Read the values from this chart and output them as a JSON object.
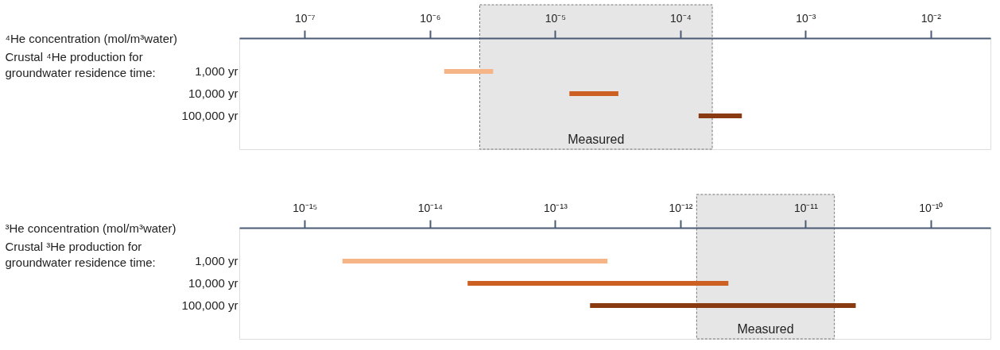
{
  "chart_data": [
    {
      "type": "bar",
      "orientation": "horizontal",
      "log": "x",
      "grid": false,
      "xlabel": "⁴He concentration (mol/m³water)",
      "ylabel": "Crustal ⁴He production for groundwater residence time:",
      "categories": [
        "1,000 yr",
        "10,000 yr",
        "100,000 yr"
      ],
      "base": [
        1.3e-06,
        1.3e-05,
        0.00014
      ],
      "values": [
        1.9e-06,
        1.9e-05,
        0.00017
      ],
      "colors": [
        "#f5b587",
        "#cc5f22",
        "#8a3a10"
      ],
      "xlim": [
        3e-08,
        0.03
      ],
      "xticks": [
        {
          "value": 1e-07,
          "label": "10⁻⁷"
        },
        {
          "value": 1e-06,
          "label": "10⁻⁶"
        },
        {
          "value": 1e-05,
          "label": "10⁻⁵"
        },
        {
          "value": 0.0001,
          "label": "10⁻⁴"
        },
        {
          "value": 0.001,
          "label": "10⁻³"
        },
        {
          "value": 0.01,
          "label": "10⁻²"
        }
      ],
      "bands": [
        {
          "axis": "x",
          "from": 2.5e-06,
          "to": 0.00018,
          "label": "Measured",
          "color": "#e6e6e6"
        }
      ]
    },
    {
      "type": "bar",
      "orientation": "horizontal",
      "log": "x",
      "grid": false,
      "xlabel": "³He concentration (mol/m³water)",
      "ylabel": "Crustal ³He production for groundwater residence time:",
      "categories": [
        "1,000 yr",
        "10,000 yr",
        "100,000 yr"
      ],
      "base": [
        2e-15,
        2e-14,
        1.9e-13
      ],
      "values": [
        2.6e-13,
        2.4e-12,
        2.5e-11
      ],
      "colors": [
        "#f5b587",
        "#cc5f22",
        "#8a3a10"
      ],
      "xlim": [
        3e-16,
        3e-10
      ],
      "xticks": [
        {
          "value": 1e-15,
          "label": "10⁻¹⁵"
        },
        {
          "value": 1e-14,
          "label": "10⁻¹⁴"
        },
        {
          "value": 1e-13,
          "label": "10⁻¹³"
        },
        {
          "value": 1e-12,
          "label": "10⁻¹²"
        },
        {
          "value": 1e-11,
          "label": "10⁻¹¹"
        },
        {
          "value": 1e-10,
          "label": "10⁻¹⁰"
        }
      ],
      "bands": [
        {
          "axis": "x",
          "from": 1.35e-12,
          "to": 1.7e-11,
          "label": "Measured",
          "color": "#e6e6e6"
        }
      ]
    }
  ]
}
